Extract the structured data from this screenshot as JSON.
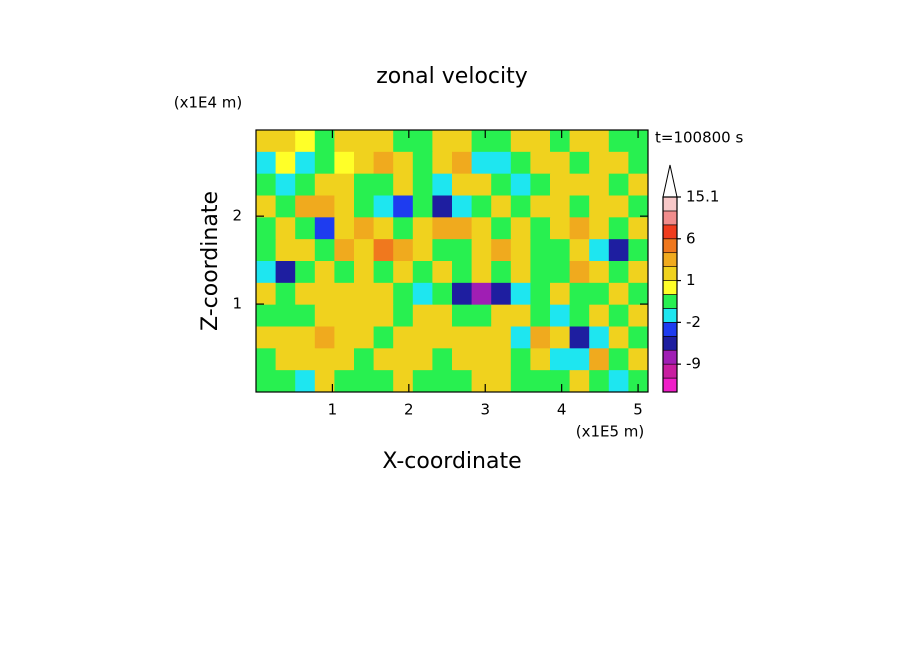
{
  "chart_data": {
    "type": "contour",
    "title": "zonal velocity",
    "x_label": "X-coordinate",
    "y_label": "Z-coordinate",
    "x_multiplier": "(x1E5 m)",
    "y_multiplier": "(x1E4 m)",
    "time_label": "t=100800 s",
    "xlim": [
      0,
      5.13
    ],
    "ylim": [
      0,
      2.98
    ],
    "xticks": [
      1,
      2,
      3,
      4,
      5
    ],
    "yticks": [
      1,
      2
    ],
    "z": [
      [
        1,
        1,
        0.5,
        -0.5,
        1,
        1,
        1.5,
        -0.5,
        -0.5,
        1,
        1,
        -0.5,
        -0.5,
        1,
        1,
        -0.5,
        1,
        1,
        -0.5,
        -0.5
      ],
      [
        -1.5,
        0.5,
        -1.5,
        -0.5,
        0.5,
        1,
        2.5,
        1,
        -0.5,
        1,
        2.5,
        -1.5,
        -1.5,
        -0.5,
        1,
        1,
        -0.5,
        1,
        1,
        -0.5
      ],
      [
        -0.5,
        -1.5,
        -0.5,
        1,
        1,
        -0.5,
        -0.5,
        1,
        -0.5,
        -1.5,
        1,
        1,
        -0.5,
        -1.5,
        -0.5,
        1,
        1,
        1,
        -0.5,
        1
      ],
      [
        1,
        -0.5,
        2.5,
        2.5,
        1,
        -0.5,
        -1.5,
        -2.5,
        -0.5,
        -5,
        -1.5,
        -0.5,
        1,
        -0.5,
        1,
        1,
        -0.5,
        1,
        1,
        -0.5
      ],
      [
        -0.5,
        1,
        -0.5,
        -2.5,
        1,
        2.5,
        1,
        -0.5,
        1,
        2.5,
        2.5,
        1,
        -0.5,
        1,
        -0.5,
        1,
        2.5,
        1,
        -0.5,
        1
      ],
      [
        -0.5,
        1,
        1,
        -0.5,
        2.5,
        1,
        3.5,
        2.5,
        1,
        -0.5,
        -0.5,
        1,
        2.5,
        1,
        -0.5,
        -0.5,
        1,
        -1.5,
        -5,
        -0.5
      ],
      [
        -1.5,
        -5,
        -0.5,
        1,
        -0.5,
        1,
        -0.5,
        1,
        -0.5,
        1,
        -0.5,
        1,
        -0.5,
        1,
        -0.5,
        -0.5,
        2.5,
        1,
        -0.5,
        1
      ],
      [
        1,
        -0.5,
        1,
        1,
        1,
        1,
        1,
        -0.5,
        -1.5,
        -0.5,
        -5,
        -7,
        -5,
        -1.5,
        -0.5,
        1,
        -0.5,
        -0.5,
        1,
        -0.5
      ],
      [
        -0.5,
        -0.5,
        -0.5,
        1,
        1,
        1,
        1,
        -0.5,
        1,
        1,
        -0.5,
        -0.5,
        1,
        1,
        -0.5,
        -1.5,
        -0.5,
        1,
        -0.5,
        1
      ],
      [
        1,
        1,
        1,
        2.5,
        1,
        1,
        -0.5,
        1,
        1,
        1,
        1,
        1,
        1,
        -1.5,
        2.5,
        1,
        -5,
        -1.5,
        1,
        -0.5
      ],
      [
        -0.5,
        1,
        1,
        1,
        1,
        -0.5,
        1,
        1,
        1,
        -0.5,
        1,
        1,
        1,
        -0.5,
        1,
        -1.5,
        -1.5,
        2.5,
        -0.5,
        1
      ],
      [
        -0.5,
        -0.5,
        -1.5,
        1,
        -0.5,
        -0.5,
        -0.5,
        1,
        -0.5,
        -0.5,
        -0.5,
        1,
        1,
        -0.5,
        -0.5,
        -0.5,
        1,
        -0.5,
        -1.5,
        -0.5
      ]
    ],
    "levels": [
      -20,
      -12,
      -9,
      -6,
      -4,
      -2,
      -1,
      0,
      1,
      2,
      3,
      6,
      9,
      12,
      15.1
    ],
    "colors": [
      "#f01ec8",
      "#c81ea0",
      "#a01eb4",
      "#1e1ea0",
      "#1e3cf0",
      "#1ee6f0",
      "#28f050",
      "#ffff28",
      "#f0d21e",
      "#f0aa1e",
      "#f0781e",
      "#f03c1e",
      "#f08c8c",
      "#f8c8c8"
    ],
    "over_color": "#ffffff",
    "colorbar_ticks": [
      15.1,
      6,
      1,
      -2,
      -9
    ]
  }
}
